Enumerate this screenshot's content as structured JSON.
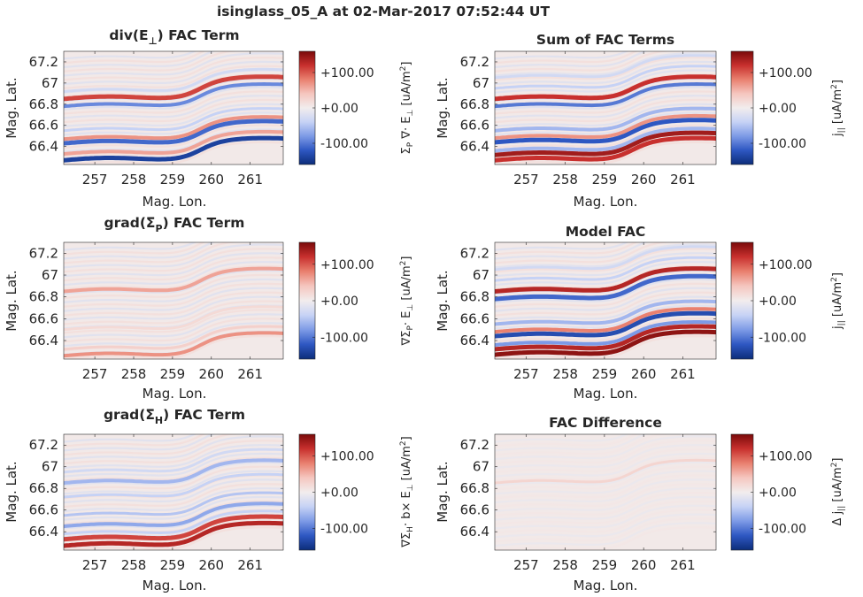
{
  "suptitle": "isinglass_05_A at 02-Mar-2017 07:52:44 UT",
  "shared": {
    "xlabel": "Mag. Lon.",
    "ylabel": "Mag. Lat.",
    "xticks": [
      257,
      258,
      259,
      260,
      261
    ],
    "xtick_labels": [
      "257",
      "258",
      "259",
      "260",
      "261"
    ],
    "yticks": [
      66.4,
      66.6,
      66.8,
      67,
      67.2
    ],
    "ytick_labels": [
      "66.4",
      "66.6",
      "66.8",
      "67",
      "67.2"
    ],
    "xlim": [
      256.2,
      261.85
    ],
    "ylim": [
      66.23,
      67.3
    ],
    "clim": [
      -160,
      160
    ],
    "cbar_ticks": [
      100,
      0,
      -100
    ],
    "cbar_tick_labels": [
      "+100.00",
      "+0.00",
      "-100.00"
    ],
    "colormap": [
      "#0c2d7a",
      "#2e57c2",
      "#7d9ae6",
      "#c6d2f5",
      "#f2eded",
      "#f5c6bf",
      "#e9806f",
      "#c8302e",
      "#7a0a0a"
    ]
  },
  "chart_data": [
    {
      "type": "heatmap",
      "title": "div(E⊥) FAC Term",
      "cbar_label": "Σp ∇·E⊥ [uA/m²]",
      "position": "top-left",
      "description_values": "Arc-aligned bands: strong negative band near 66.3, mixed band near 66.45, positive band near 66.85",
      "bands": [
        {
          "lat_at_start": 66.27,
          "value": -140
        },
        {
          "lat_at_start": 66.33,
          "value": 60
        },
        {
          "lat_at_start": 66.43,
          "value": -110
        },
        {
          "lat_at_start": 66.47,
          "value": 70
        },
        {
          "lat_at_start": 66.55,
          "value": -40
        },
        {
          "lat_at_start": 66.78,
          "value": -90
        },
        {
          "lat_at_start": 66.85,
          "value": 110
        },
        {
          "lat_at_start": 66.92,
          "value": -30
        }
      ]
    },
    {
      "type": "heatmap",
      "title": "Sum of FAC Terms",
      "cbar_label": "j|| [uA/m²]",
      "position": "top-right",
      "bands": [
        {
          "lat_at_start": 66.27,
          "value": 120
        },
        {
          "lat_at_start": 66.32,
          "value": 140
        },
        {
          "lat_at_start": 66.36,
          "value": -60
        },
        {
          "lat_at_start": 66.44,
          "value": -120
        },
        {
          "lat_at_start": 66.48,
          "value": 70
        },
        {
          "lat_at_start": 66.55,
          "value": -60
        },
        {
          "lat_at_start": 66.78,
          "value": -100
        },
        {
          "lat_at_start": 66.85,
          "value": 120
        },
        {
          "lat_at_start": 66.95,
          "value": -40
        },
        {
          "lat_at_start": 67.05,
          "value": -30
        }
      ]
    },
    {
      "type": "heatmap",
      "title": "grad(Σp) FAC Term",
      "cbar_label": "∇Σp·E⊥ [uA/m²]",
      "position": "middle-left",
      "bands": [
        {
          "lat_at_start": 66.26,
          "value": 70
        },
        {
          "lat_at_start": 66.32,
          "value": 30
        },
        {
          "lat_at_start": 66.5,
          "value": 20
        },
        {
          "lat_at_start": 66.85,
          "value": 60
        }
      ]
    },
    {
      "type": "heatmap",
      "title": "Model FAC",
      "cbar_label": "j|| [uA/m²]",
      "position": "middle-right",
      "bands": [
        {
          "lat_at_start": 66.27,
          "value": 150
        },
        {
          "lat_at_start": 66.32,
          "value": 130
        },
        {
          "lat_at_start": 66.36,
          "value": -80
        },
        {
          "lat_at_start": 66.44,
          "value": -130
        },
        {
          "lat_at_start": 66.48,
          "value": 80
        },
        {
          "lat_at_start": 66.55,
          "value": -60
        },
        {
          "lat_at_start": 66.78,
          "value": -110
        },
        {
          "lat_at_start": 66.85,
          "value": 130
        },
        {
          "lat_at_start": 66.95,
          "value": -40
        },
        {
          "lat_at_start": 67.05,
          "value": -30
        }
      ]
    },
    {
      "type": "heatmap",
      "title": "grad(ΣH) FAC Term",
      "cbar_label": "∇ΣH·b×E⊥ [uA/m²]",
      "position": "bottom-left",
      "bands": [
        {
          "lat_at_start": 66.27,
          "value": 130
        },
        {
          "lat_at_start": 66.33,
          "value": 110
        },
        {
          "lat_at_start": 66.38,
          "value": -40
        },
        {
          "lat_at_start": 66.45,
          "value": -70
        },
        {
          "lat_at_start": 66.55,
          "value": -50
        },
        {
          "lat_at_start": 66.72,
          "value": -40
        },
        {
          "lat_at_start": 66.85,
          "value": -60
        },
        {
          "lat_at_start": 66.95,
          "value": -30
        }
      ]
    },
    {
      "type": "heatmap",
      "title": "FAC Difference",
      "cbar_label": "Δ j|| [uA/m²]",
      "position": "bottom-right",
      "bands": [
        {
          "lat_at_start": 66.85,
          "value": 25
        }
      ]
    }
  ]
}
